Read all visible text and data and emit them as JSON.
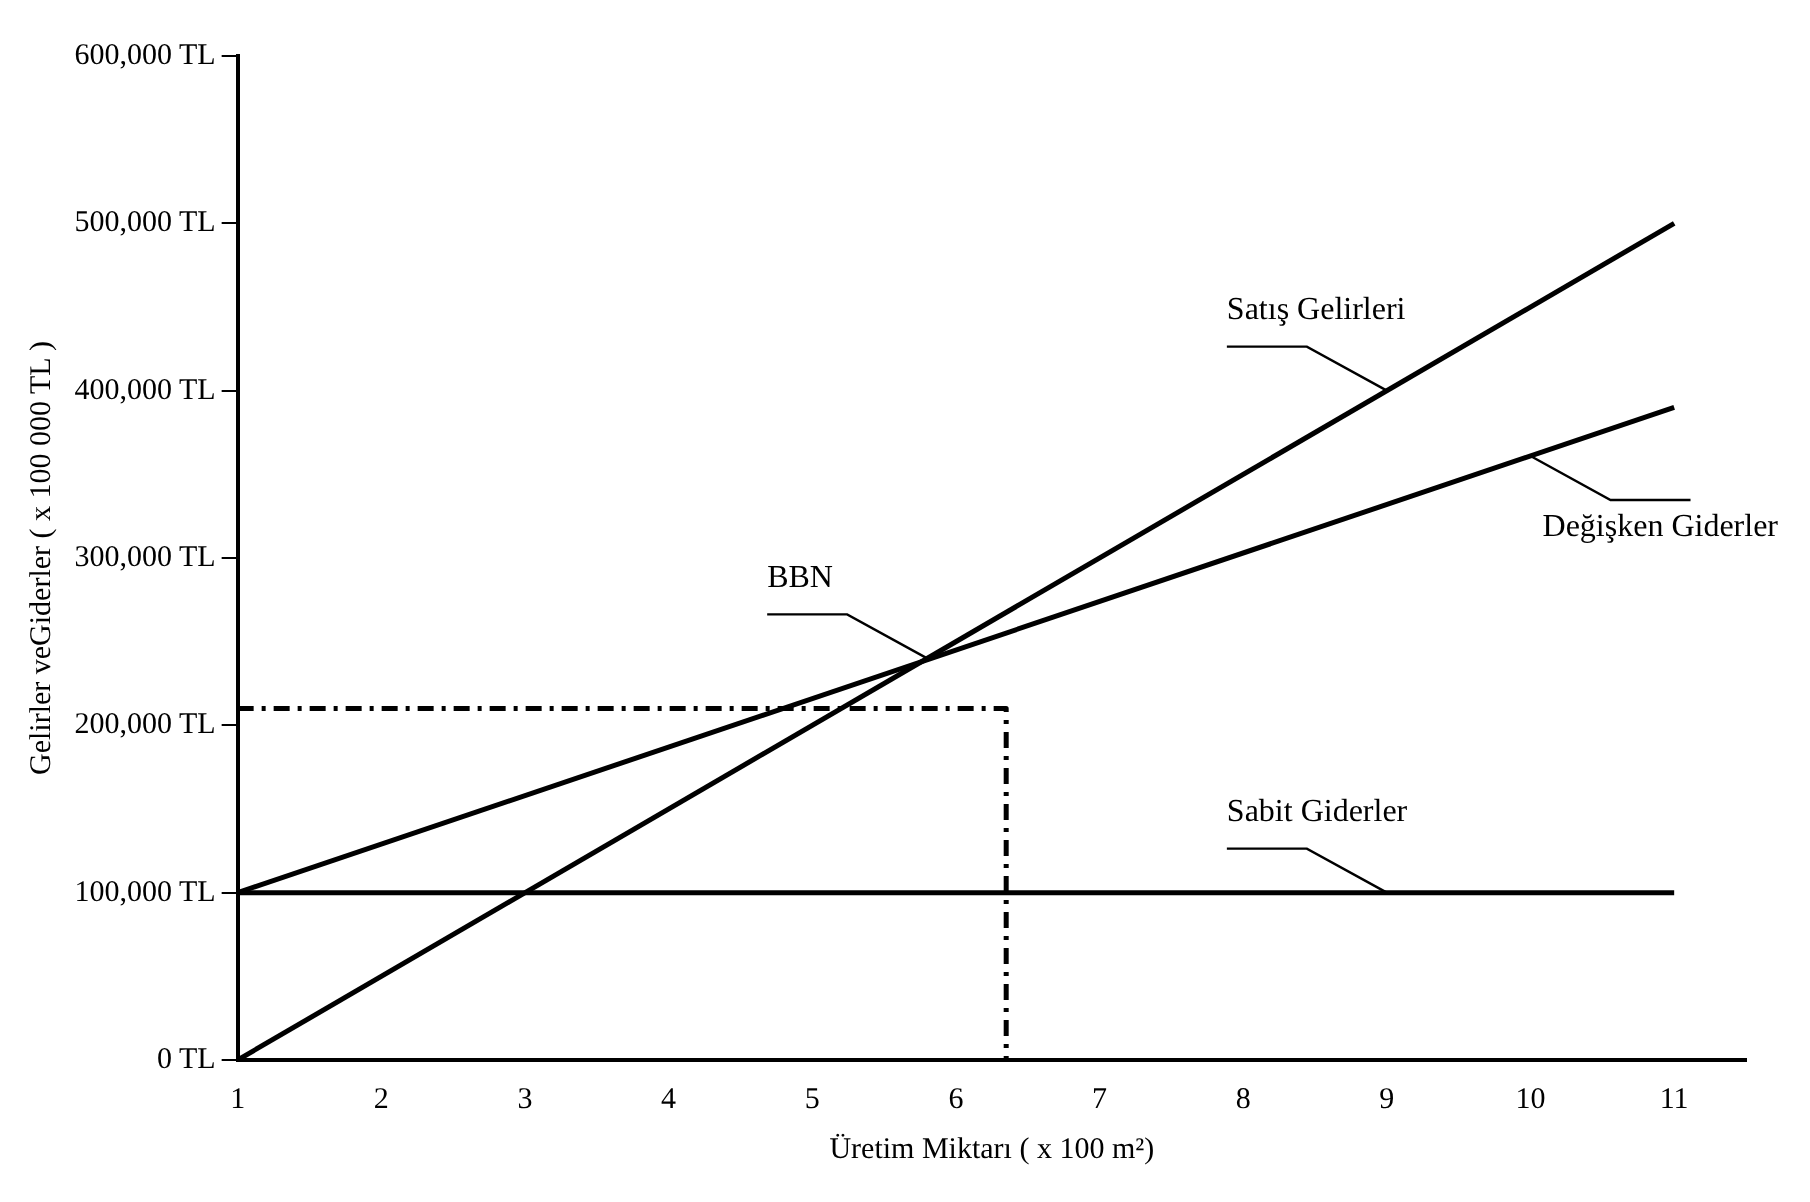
{
  "chart_data": {
    "type": "line",
    "xlabel": "Üretim Miktarı ( x 100 m²)",
    "ylabel": "Gelirler veGiderler ( x 100 000 TL )",
    "xlim": [
      1,
      11.5
    ],
    "xticks": [
      1,
      2,
      3,
      4,
      5,
      6,
      7,
      8,
      9,
      10,
      11
    ],
    "ylim": [
      0,
      600000
    ],
    "yticks": [
      {
        "value": 0,
        "label": "0 TL"
      },
      {
        "value": 100000,
        "label": "100,000 TL"
      },
      {
        "value": 200000,
        "label": "200,000 TL"
      },
      {
        "value": 300000,
        "label": "300,000 TL"
      },
      {
        "value": 400000,
        "label": "400,000 TL"
      },
      {
        "value": 500000,
        "label": "500,000 TL"
      },
      {
        "value": 600000,
        "label": "600,000 TL"
      }
    ],
    "grid": false,
    "legend": false,
    "marker": "none",
    "series": [
      {
        "color": "#000000",
        "x": [
          1,
          11
        ],
        "values": [
          0,
          500000
        ]
      },
      {
        "color": "#000000",
        "x": [
          1,
          11
        ],
        "values": [
          100000,
          390000
        ]
      },
      {
        "color": "#000000",
        "x": [
          1,
          11
        ],
        "values": [
          100000,
          100000
        ]
      },
      {
        "color": "#000000",
        "x": [
          1,
          6.35,
          6.35
        ],
        "values": [
          210000,
          210000,
          0
        ],
        "line_style": "dashed"
      }
    ],
    "annotations": [
      {
        "text": "Satış Gelirleri",
        "x": 9,
        "y": 400000
      },
      {
        "text": "Değişken Giderler",
        "x": 10,
        "y": 361000
      },
      {
        "text": "BBN",
        "x": 5.8,
        "y": 240000
      },
      {
        "text": "Sabit Giderler",
        "x": 9,
        "y": 100000
      }
    ]
  }
}
